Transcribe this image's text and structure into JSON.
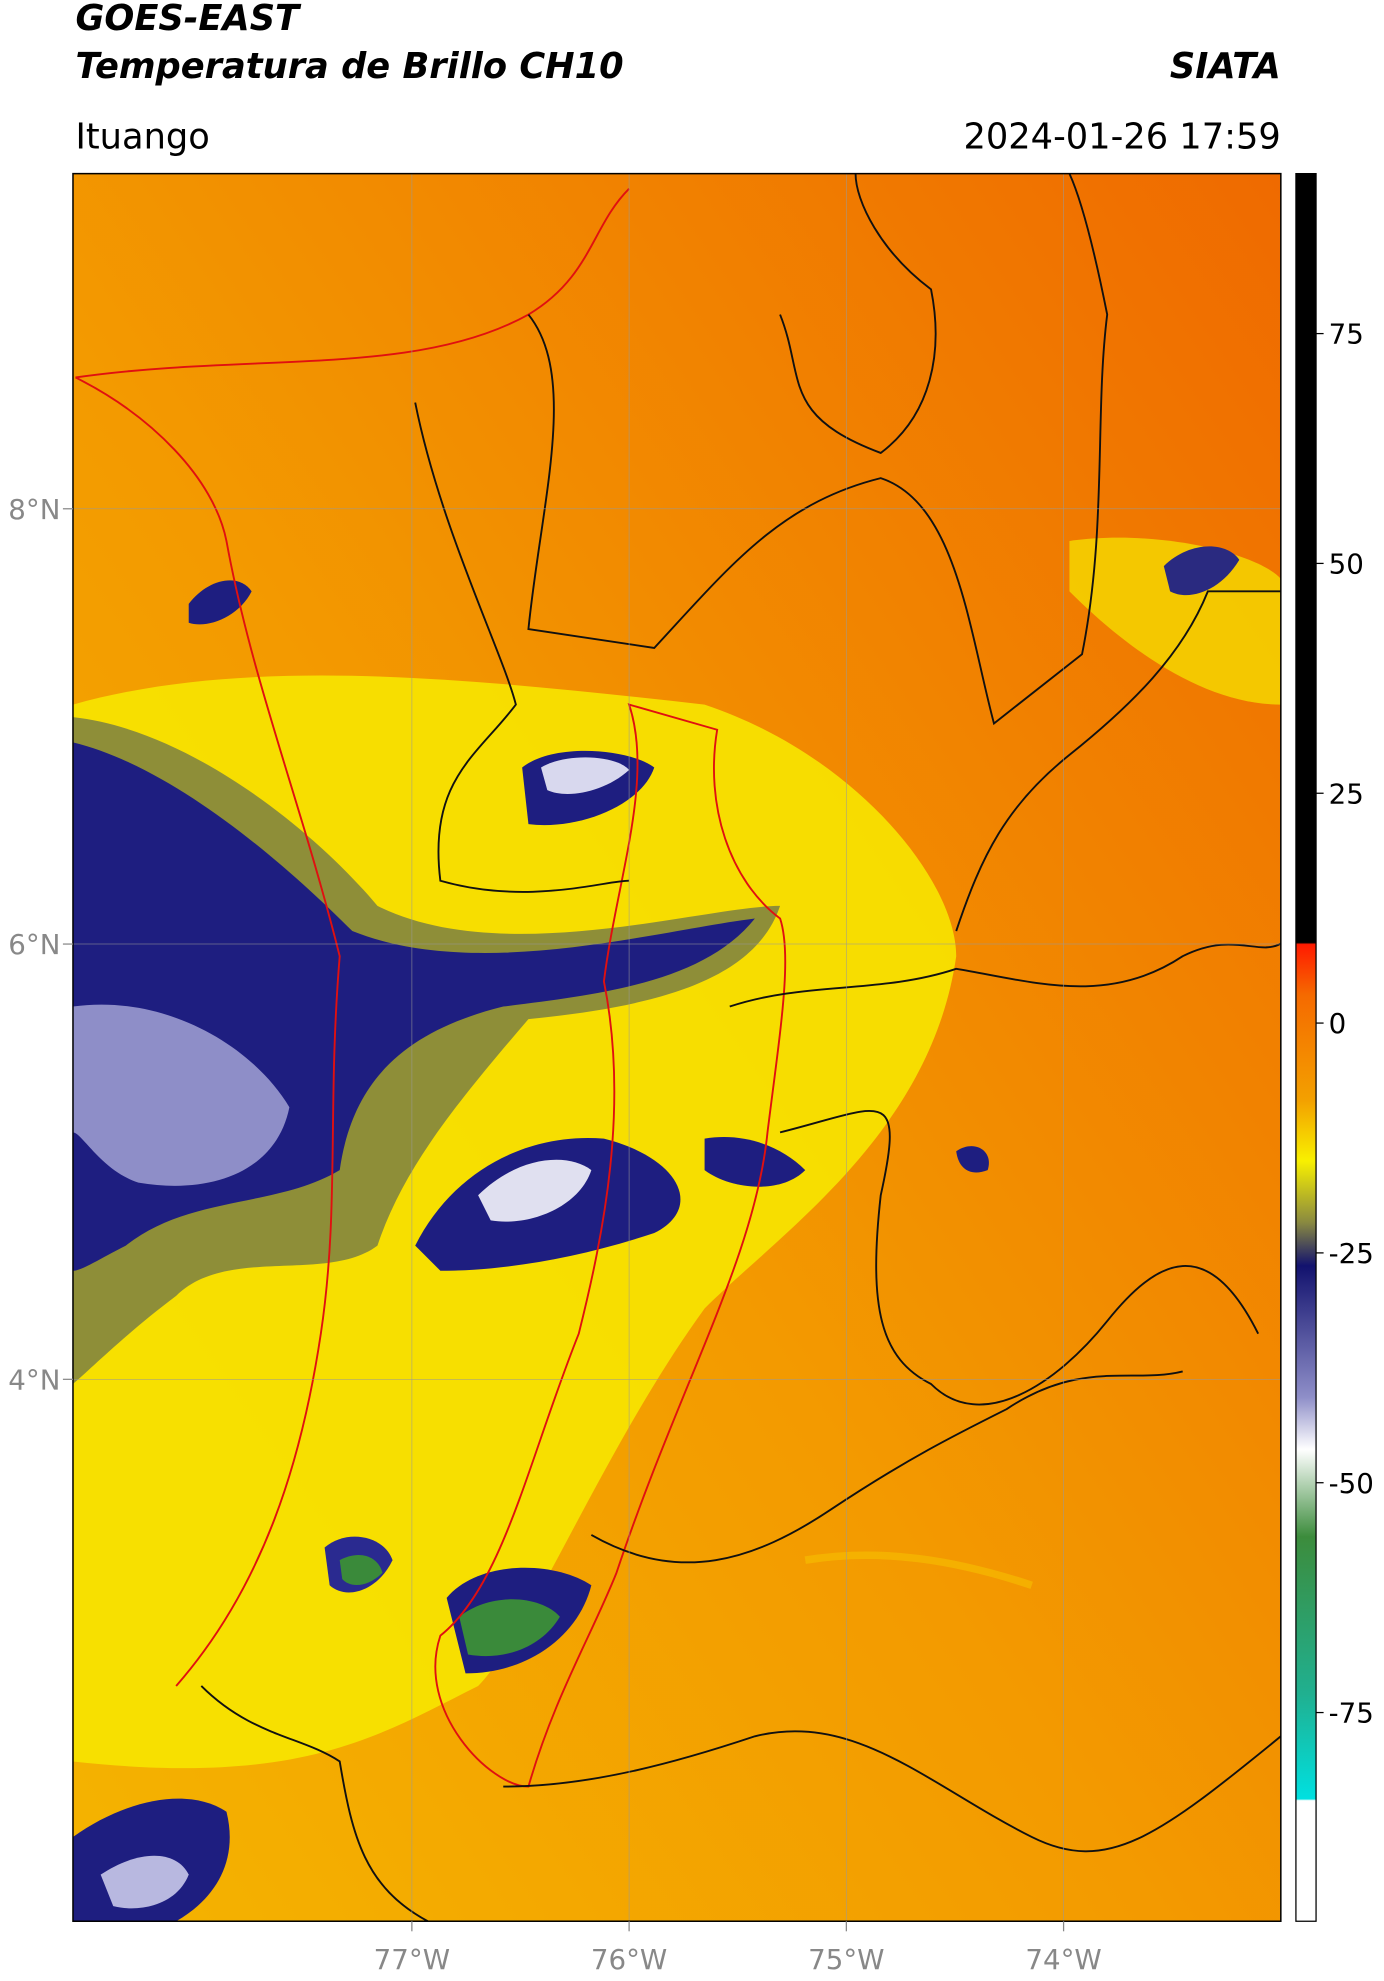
{
  "header": {
    "title": "GOES-EAST",
    "subtitle": "Temperatura de Brillo CH10",
    "org": "SIATA",
    "location": "Ituango",
    "datetime": "2024-01-26 17:59"
  },
  "map": {
    "xlim": [
      -78.56,
      -73.0
    ],
    "ylim": [
      1.51,
      9.54
    ],
    "xticks": [
      {
        "value": -77,
        "label": "77°W"
      },
      {
        "value": -76,
        "label": "76°W"
      },
      {
        "value": -75,
        "label": "75°W"
      },
      {
        "value": -74,
        "label": "74°W"
      }
    ],
    "yticks": [
      {
        "value": 8,
        "label": "8°N"
      },
      {
        "value": 6,
        "label": "6°N"
      },
      {
        "value": 4,
        "label": "4°N"
      }
    ],
    "grid": true
  },
  "colorbar": {
    "lim": [
      -97.7,
      92.4
    ],
    "ticks": [
      75,
      50,
      25,
      0,
      -25,
      -50,
      -75
    ]
  }
}
